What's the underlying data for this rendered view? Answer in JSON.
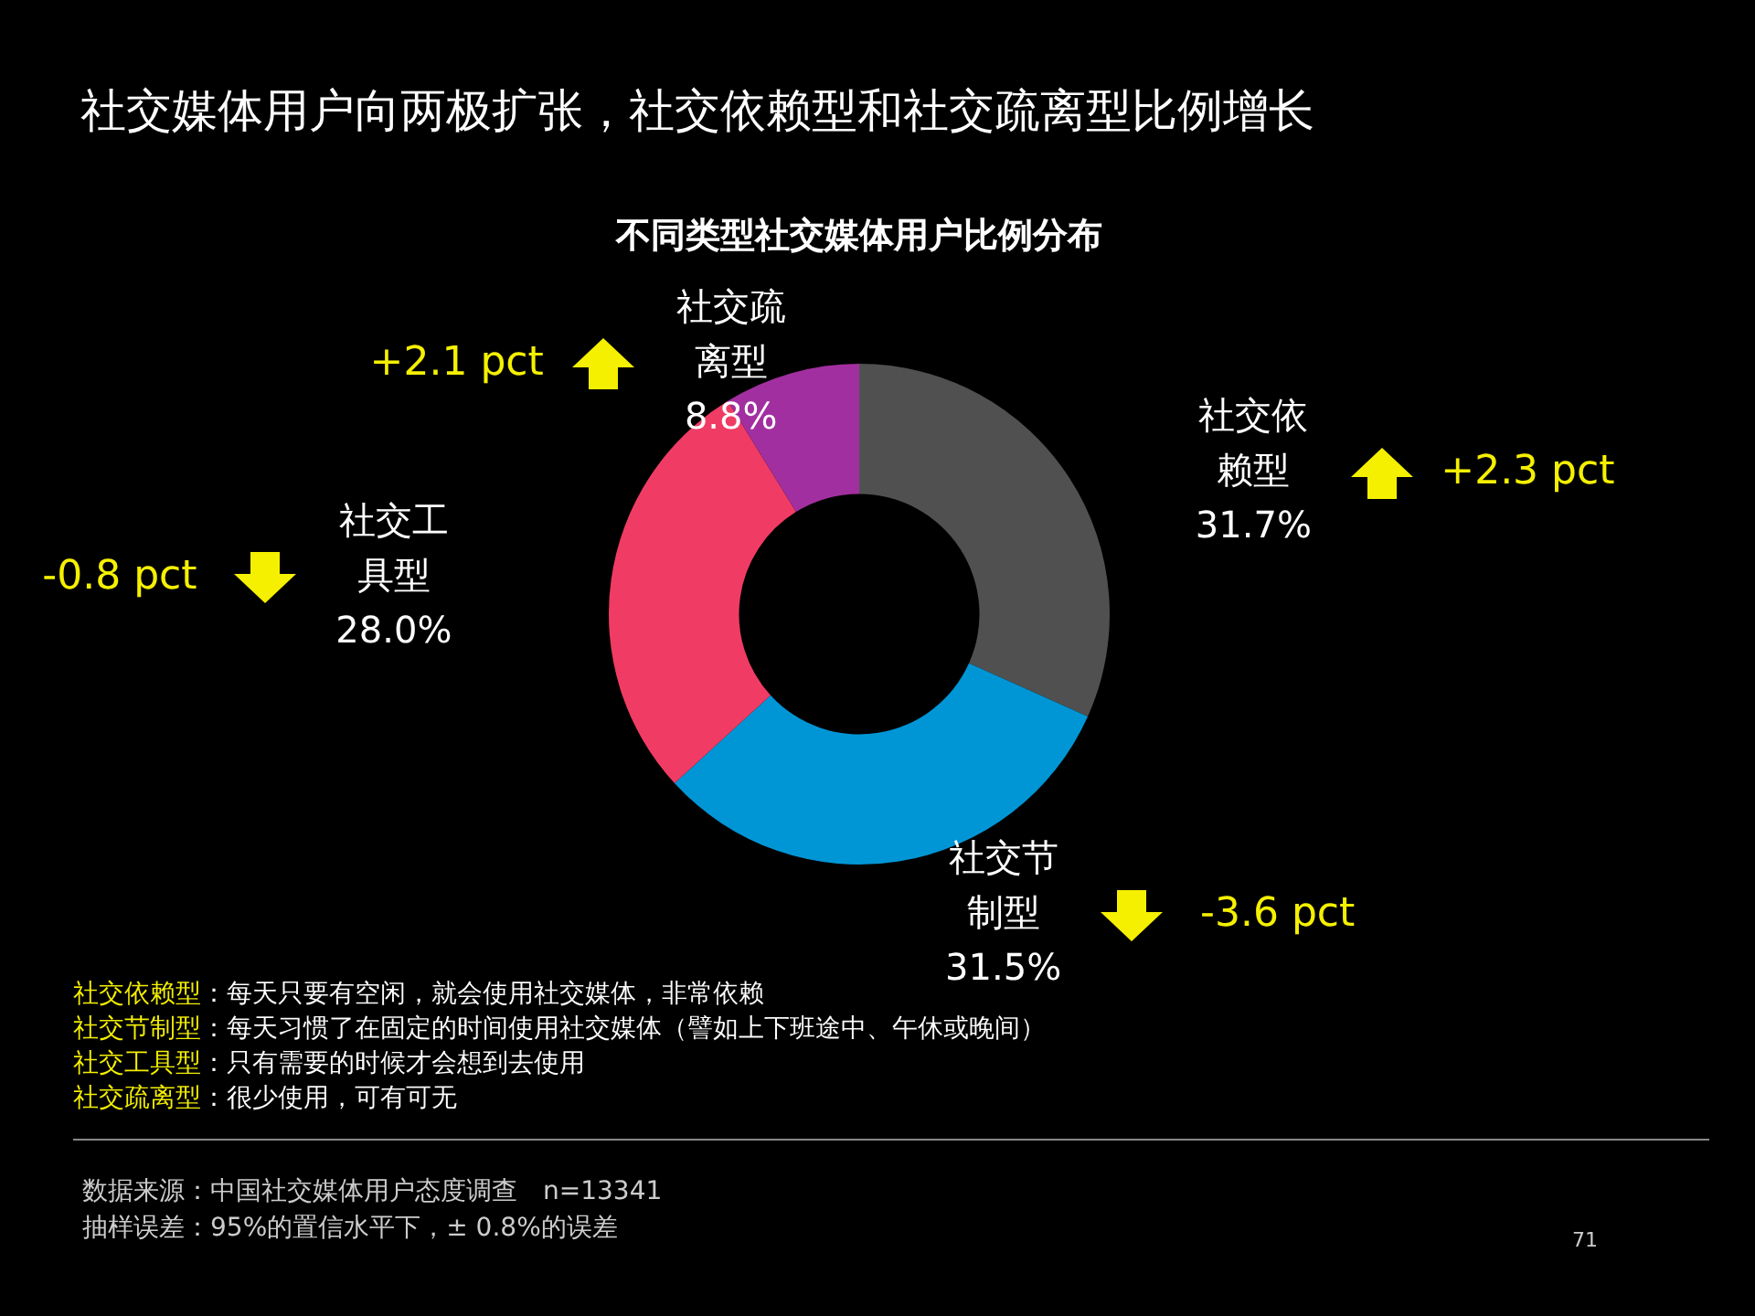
{
  "chart_data": {
    "type": "donut",
    "title": "社交媒体用户向两极扩张，社交依赖型和社交疏离型比例增长",
    "subtitle": "不同类型社交媒体用户比例分布",
    "categories": [
      "社交依赖型",
      "社交节制型",
      "社交工具型",
      "社交疏离型"
    ],
    "values": [
      31.7,
      31.5,
      28.0,
      8.8
    ],
    "value_labels": [
      "31.7%",
      "31.5%",
      "28.0%",
      "8.8%"
    ],
    "colors": [
      "#505050",
      "#0096d6",
      "#f03c64",
      "#a22fa0"
    ],
    "legend": false,
    "annotations": [
      {
        "text": "+2.3 pct",
        "x": "社交依赖型"
      },
      {
        "text": "-3.6 pct",
        "x": "社交节制型"
      },
      {
        "text": "-0.8 pct",
        "x": "社交工具型"
      },
      {
        "text": "+2.1 pct",
        "x": "社交疏离型"
      },
      "社交依赖型：每天只要有空闲，就会使用社交媒体，非常依赖",
      "社交节制型：每天习惯了在固定的时间使用社交媒体（譬如上下班途中、午休或晚间）",
      "社交工具型：只有需要的时候才会想到去使用",
      "社交疏离型：很少使用，可有可无",
      "数据来源：中国社交媒体用户态度调查　n=13341",
      "抽样误差：95%的置信水平下，± 0.8%的误差",
      "71"
    ]
  }
}
